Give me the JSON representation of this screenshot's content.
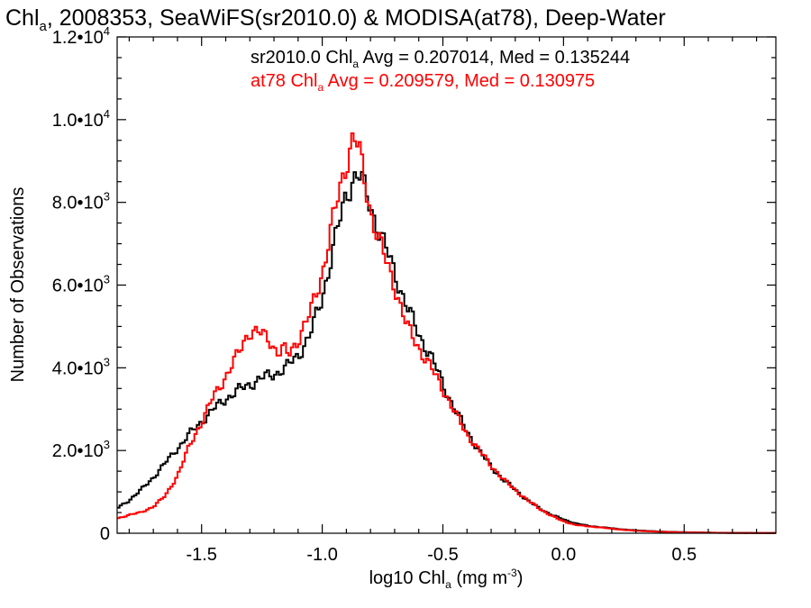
{
  "chart_data": {
    "type": "line",
    "title": {
      "main": "Chl",
      "sub": "a",
      "rest": ", 2008353, SeaWiFS(sr2010.0) & MODISA(at78), Deep-Water"
    },
    "xlabel": {
      "pre": "log10 Chl",
      "sub": "a",
      "post": " (mg m",
      "sup": "-3",
      "end": ")"
    },
    "ylabel": "Number of Observations",
    "xlim": [
      -1.85,
      0.88
    ],
    "ylim": [
      0,
      12000
    ],
    "x_ticks": [
      {
        "value": -1.5,
        "label": "-1.5"
      },
      {
        "value": -1.0,
        "label": "-1.0"
      },
      {
        "value": -0.5,
        "label": "-0.5"
      },
      {
        "value": 0.0,
        "label": "0.0"
      },
      {
        "value": 0.5,
        "label": "0.5"
      }
    ],
    "y_ticks": [
      {
        "value": 0,
        "mant": "0",
        "exp": ""
      },
      {
        "value": 2000,
        "mant": "2.0•10",
        "exp": "3"
      },
      {
        "value": 4000,
        "mant": "4.0•10",
        "exp": "3"
      },
      {
        "value": 6000,
        "mant": "6.0•10",
        "exp": "3"
      },
      {
        "value": 8000,
        "mant": "8.0•10",
        "exp": "3"
      },
      {
        "value": 10000,
        "mant": "1.0•10",
        "exp": "4"
      },
      {
        "value": 12000,
        "mant": "1.2•10",
        "exp": "4"
      }
    ],
    "grid": false,
    "legend": [
      {
        "pre": "sr2010.0 Chl",
        "sub": "a",
        "post": " Avg = 0.207014, Med = 0.135244",
        "color": "#000000"
      },
      {
        "pre": "at78 Chl",
        "sub": "a",
        "post": " Avg = 0.209579, Med = 0.130975",
        "color": "#ff0000"
      }
    ],
    "series": [
      {
        "color": "#000000",
        "x": [
          -1.85,
          -1.8,
          -1.75,
          -1.7,
          -1.65,
          -1.6,
          -1.55,
          -1.5,
          -1.45,
          -1.4,
          -1.35,
          -1.3,
          -1.25,
          -1.2,
          -1.15,
          -1.1,
          -1.05,
          -1.0,
          -0.95,
          -0.9,
          -0.87,
          -0.85,
          -0.83,
          -0.8,
          -0.75,
          -0.7,
          -0.65,
          -0.6,
          -0.55,
          -0.5,
          -0.45,
          -0.4,
          -0.35,
          -0.3,
          -0.25,
          -0.2,
          -0.15,
          -0.1,
          -0.05,
          0.0,
          0.05,
          0.1,
          0.15,
          0.2,
          0.25,
          0.3,
          0.4,
          0.5,
          0.6,
          0.7,
          0.88
        ],
        "y": [
          600,
          800,
          1050,
          1350,
          1700,
          2050,
          2400,
          2700,
          3000,
          3250,
          3450,
          3600,
          3750,
          3850,
          4000,
          4300,
          4800,
          5700,
          7000,
          8200,
          8600,
          8700,
          8400,
          7900,
          7100,
          6300,
          5500,
          4800,
          4300,
          3600,
          3000,
          2450,
          2000,
          1600,
          1300,
          1050,
          800,
          600,
          450,
          330,
          240,
          180,
          150,
          120,
          90,
          70,
          40,
          25,
          15,
          8,
          5
        ]
      },
      {
        "color": "#ff0000",
        "x": [
          -1.85,
          -1.8,
          -1.75,
          -1.7,
          -1.65,
          -1.6,
          -1.55,
          -1.5,
          -1.45,
          -1.4,
          -1.35,
          -1.32,
          -1.3,
          -1.27,
          -1.25,
          -1.22,
          -1.2,
          -1.18,
          -1.16,
          -1.14,
          -1.12,
          -1.1,
          -1.05,
          -1.0,
          -0.95,
          -0.9,
          -0.88,
          -0.87,
          -0.85,
          -0.83,
          -0.8,
          -0.75,
          -0.7,
          -0.65,
          -0.6,
          -0.55,
          -0.5,
          -0.45,
          -0.4,
          -0.35,
          -0.3,
          -0.25,
          -0.2,
          -0.15,
          -0.1,
          -0.05,
          0.0,
          0.05,
          0.1,
          0.15,
          0.2,
          0.25,
          0.3,
          0.4,
          0.5,
          0.6,
          0.7,
          0.88
        ],
        "y": [
          350,
          450,
          500,
          650,
          900,
          1400,
          2100,
          2700,
          3300,
          3800,
          4300,
          4700,
          4900,
          4850,
          4800,
          4700,
          4500,
          4350,
          4450,
          4300,
          4500,
          4700,
          5300,
          6300,
          7700,
          9000,
          9400,
          9600,
          9300,
          8700,
          7800,
          6800,
          6000,
          5000,
          4500,
          4000,
          3500,
          2900,
          2400,
          2000,
          1650,
          1300,
          1050,
          800,
          600,
          420,
          290,
          200,
          170,
          140,
          110,
          80,
          60,
          35,
          20,
          12,
          6,
          4
        ]
      }
    ]
  }
}
